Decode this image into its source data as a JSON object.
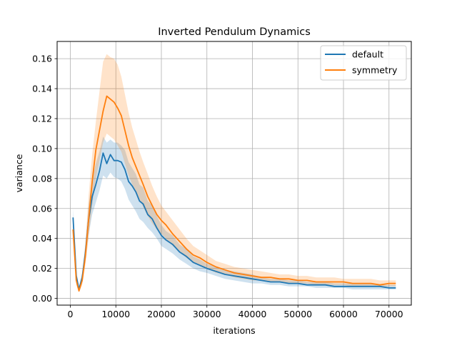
{
  "chart_data": {
    "type": "line",
    "title": "Inverted Pendulum Dynamics",
    "xlabel": "iterations",
    "ylabel": "variance",
    "xlim": [
      -2900,
      74900
    ],
    "ylim": [
      -0.0045,
      0.1715
    ],
    "xticks": [
      0,
      10000,
      20000,
      30000,
      40000,
      50000,
      60000,
      70000
    ],
    "xtick_labels": [
      "0",
      "10000",
      "20000",
      "30000",
      "40000",
      "50000",
      "60000",
      "70000"
    ],
    "yticks": [
      0.0,
      0.02,
      0.04,
      0.06,
      0.08,
      0.1,
      0.12,
      0.14,
      0.16
    ],
    "ytick_labels": [
      "0.00",
      "0.02",
      "0.04",
      "0.06",
      "0.08",
      "0.10",
      "0.12",
      "0.14",
      "0.16"
    ],
    "grid": true,
    "legend_position": "top-right",
    "series": [
      {
        "name": "default",
        "color": "#1f77b4",
        "x": [
          600,
          1300,
          1900,
          2600,
          3300,
          4000,
          4800,
          5600,
          6400,
          7200,
          8000,
          8800,
          9600,
          10400,
          11200,
          12000,
          12800,
          13600,
          14400,
          15200,
          16000,
          17000,
          18000,
          19000,
          20000,
          21000,
          22500,
          24000,
          25500,
          27000,
          28500,
          30000,
          32000,
          34000,
          36000,
          38000,
          40000,
          42000,
          44000,
          46000,
          48000,
          50000,
          52000,
          54000,
          56000,
          58000,
          60000,
          62000,
          64000,
          66000,
          68000,
          70000,
          71500
        ],
        "y": [
          0.054,
          0.015,
          0.006,
          0.014,
          0.03,
          0.052,
          0.068,
          0.076,
          0.085,
          0.097,
          0.09,
          0.096,
          0.092,
          0.092,
          0.091,
          0.086,
          0.078,
          0.075,
          0.071,
          0.065,
          0.063,
          0.056,
          0.053,
          0.047,
          0.042,
          0.039,
          0.036,
          0.031,
          0.028,
          0.024,
          0.022,
          0.02,
          0.018,
          0.016,
          0.015,
          0.014,
          0.013,
          0.012,
          0.011,
          0.011,
          0.01,
          0.01,
          0.009,
          0.009,
          0.009,
          0.008,
          0.008,
          0.008,
          0.008,
          0.008,
          0.008,
          0.007,
          0.007
        ],
        "lower": [
          0.048,
          0.012,
          0.005,
          0.011,
          0.024,
          0.042,
          0.056,
          0.064,
          0.072,
          0.082,
          0.08,
          0.084,
          0.081,
          0.08,
          0.078,
          0.073,
          0.066,
          0.062,
          0.058,
          0.053,
          0.051,
          0.047,
          0.044,
          0.04,
          0.035,
          0.033,
          0.03,
          0.026,
          0.023,
          0.02,
          0.018,
          0.017,
          0.015,
          0.013,
          0.012,
          0.011,
          0.01,
          0.01,
          0.009,
          0.009,
          0.008,
          0.008,
          0.008,
          0.007,
          0.007,
          0.007,
          0.007,
          0.006,
          0.006,
          0.006,
          0.006,
          0.006,
          0.006
        ],
        "upper": [
          0.06,
          0.018,
          0.008,
          0.017,
          0.036,
          0.062,
          0.08,
          0.09,
          0.098,
          0.108,
          0.104,
          0.106,
          0.104,
          0.104,
          0.102,
          0.099,
          0.091,
          0.087,
          0.083,
          0.076,
          0.074,
          0.065,
          0.062,
          0.055,
          0.049,
          0.045,
          0.042,
          0.036,
          0.033,
          0.028,
          0.026,
          0.023,
          0.021,
          0.019,
          0.018,
          0.017,
          0.016,
          0.014,
          0.013,
          0.013,
          0.012,
          0.012,
          0.011,
          0.011,
          0.011,
          0.01,
          0.01,
          0.01,
          0.01,
          0.01,
          0.009,
          0.009,
          0.009
        ]
      },
      {
        "name": "symmetry",
        "color": "#ff7f0e",
        "x": [
          600,
          1300,
          1900,
          2600,
          3300,
          4000,
          4800,
          5600,
          6400,
          7200,
          8000,
          8800,
          9600,
          10400,
          11200,
          12000,
          12800,
          13600,
          14400,
          15200,
          16000,
          17000,
          18000,
          19000,
          20000,
          21000,
          22500,
          24000,
          25500,
          27000,
          28500,
          30000,
          32000,
          34000,
          36000,
          38000,
          40000,
          42000,
          44000,
          46000,
          48000,
          50000,
          52000,
          54000,
          56000,
          58000,
          60000,
          62000,
          64000,
          66000,
          68000,
          70000,
          71500
        ],
        "y": [
          0.046,
          0.012,
          0.005,
          0.012,
          0.028,
          0.052,
          0.078,
          0.099,
          0.112,
          0.125,
          0.135,
          0.133,
          0.131,
          0.127,
          0.122,
          0.112,
          0.102,
          0.094,
          0.088,
          0.082,
          0.076,
          0.068,
          0.062,
          0.056,
          0.052,
          0.049,
          0.043,
          0.038,
          0.033,
          0.029,
          0.027,
          0.024,
          0.021,
          0.019,
          0.017,
          0.016,
          0.015,
          0.014,
          0.014,
          0.013,
          0.013,
          0.012,
          0.012,
          0.011,
          0.011,
          0.011,
          0.011,
          0.01,
          0.01,
          0.01,
          0.009,
          0.01,
          0.01
        ],
        "lower": [
          0.04,
          0.009,
          0.004,
          0.009,
          0.022,
          0.04,
          0.062,
          0.08,
          0.092,
          0.104,
          0.11,
          0.108,
          0.106,
          0.102,
          0.098,
          0.09,
          0.082,
          0.076,
          0.071,
          0.066,
          0.061,
          0.055,
          0.05,
          0.046,
          0.043,
          0.04,
          0.035,
          0.031,
          0.027,
          0.024,
          0.022,
          0.02,
          0.017,
          0.016,
          0.014,
          0.013,
          0.012,
          0.012,
          0.011,
          0.011,
          0.01,
          0.01,
          0.01,
          0.009,
          0.009,
          0.009,
          0.009,
          0.008,
          0.008,
          0.008,
          0.008,
          0.008,
          0.008
        ],
        "upper": [
          0.052,
          0.015,
          0.007,
          0.016,
          0.036,
          0.068,
          0.096,
          0.118,
          0.138,
          0.158,
          0.163,
          0.161,
          0.16,
          0.156,
          0.148,
          0.136,
          0.124,
          0.114,
          0.106,
          0.098,
          0.091,
          0.083,
          0.075,
          0.068,
          0.062,
          0.058,
          0.052,
          0.046,
          0.04,
          0.035,
          0.032,
          0.029,
          0.025,
          0.023,
          0.021,
          0.02,
          0.019,
          0.018,
          0.017,
          0.016,
          0.016,
          0.015,
          0.015,
          0.014,
          0.014,
          0.014,
          0.013,
          0.013,
          0.013,
          0.013,
          0.012,
          0.012,
          0.012
        ]
      }
    ]
  }
}
